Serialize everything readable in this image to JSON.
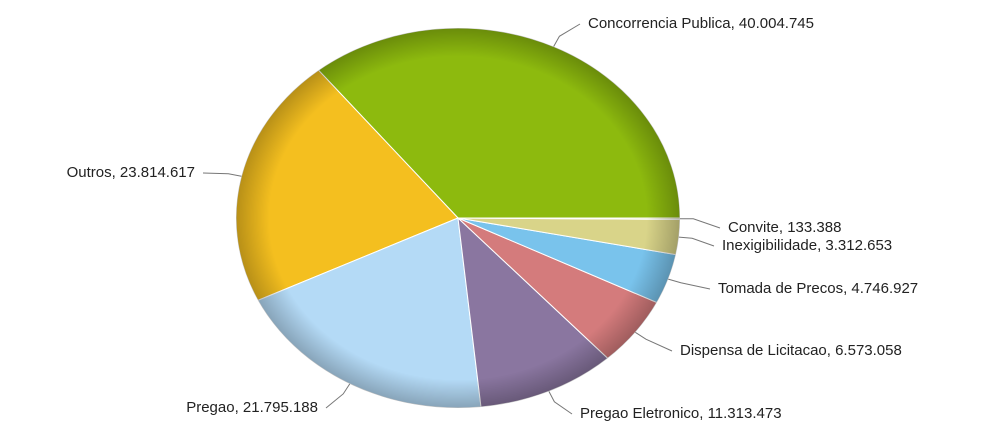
{
  "chart_data": {
    "type": "pie",
    "values": [
      40004745,
      23814617,
      21795188,
      11313473,
      6573058,
      4746927,
      3312653,
      133388
    ],
    "value_labels": [
      "Concorrencia Publica, 40.004.745",
      "Outros, 23.814.617",
      "Pregao, 21.795.188",
      "Pregao Eletronico, 11.313.473",
      "Dispensa de Licitacao, 6.573.058",
      "Tomada de Precos, 4.746.927",
      "Inexigibilidade, 3.312.653",
      "Convite, 133.388"
    ],
    "colors": [
      "#8dba0e",
      "#f4bf1f",
      "#b4daf6",
      "#8a76a0",
      "#d47b7c",
      "#79c3ec",
      "#d9d489",
      "#c9c98a"
    ]
  }
}
